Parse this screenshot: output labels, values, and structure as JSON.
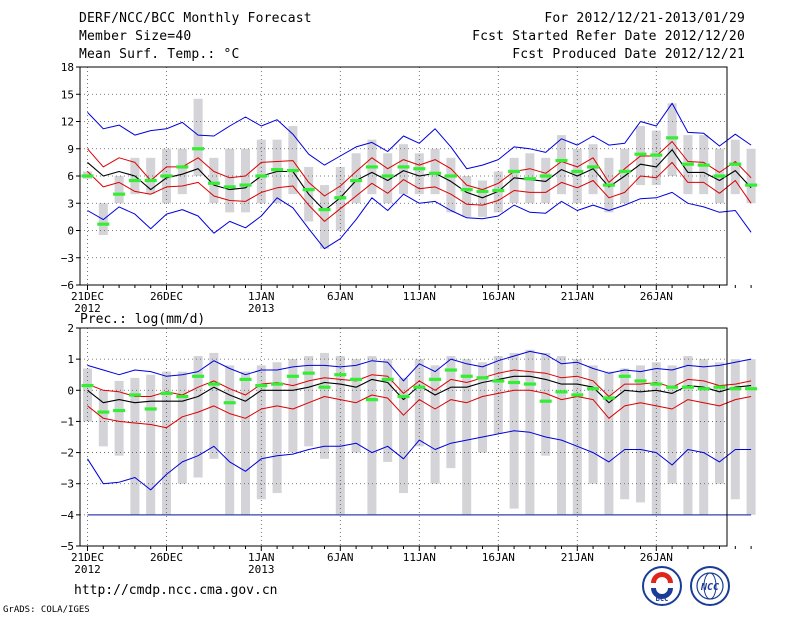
{
  "header": {
    "title": "DERF/NCC/BCC Monthly Forecast",
    "member_size": "Member Size=40",
    "variable": "Mean Surf. Temp.: °C",
    "forecast_period": "For 2012/12/21-2013/01/29",
    "fcst_started": "Fcst Started Refer Date 2012/12/20",
    "fcst_produced": "Fcst Produced Date 2012/12/21"
  },
  "footer": {
    "url": "http://cmdp.ncc.cma.gov.cn",
    "credit": "GrADS: COLA/IGES",
    "logo_left_text": "BCC",
    "logo_right_text": "NCC"
  },
  "colors": {
    "box": "#d3d3d8",
    "extreme": "#0000dd",
    "quartile": "#dd0000",
    "mean": "#000000",
    "observed": "#33ee33",
    "grid": "#555555"
  },
  "chart_data": [
    {
      "type": "line",
      "title": "Mean Surf. Temp.: °C",
      "x_start": "2012-12-21",
      "x_tick_labels": [
        "21DEC",
        "26DEC",
        "1JAN",
        "6JAN",
        "11JAN",
        "16JAN",
        "21JAN",
        "26JAN"
      ],
      "x_year_labels": [
        "2012",
        "2013"
      ],
      "y_tick_labels": [
        "18",
        "15",
        "12",
        "9",
        "6",
        "3",
        "0",
        "−3",
        "−6"
      ],
      "ylim": [
        -6,
        18
      ],
      "y_ticks": [
        -6,
        -3,
        0,
        3,
        6,
        9,
        12,
        15,
        18
      ],
      "grid": true,
      "series": [
        {
          "name": "max",
          "values": [
            13,
            11.2,
            11.6,
            10.5,
            11,
            11.2,
            11.9,
            10.5,
            10.4,
            11.5,
            12.5,
            11.5,
            12.2,
            10.6,
            8.4,
            7.2,
            8.2,
            9.2,
            9.7,
            8.7,
            10.4,
            9.6,
            11.2,
            9.2,
            6.8,
            7.2,
            7.8,
            9.2,
            9.0,
            8.6,
            10.1,
            9.4,
            10.4,
            9.4,
            9.6,
            12.0,
            11.5,
            14.0,
            10.8,
            10.7,
            9.3,
            10.6,
            9.4
          ]
        },
        {
          "name": "q3",
          "values": [
            9.0,
            7.0,
            8.0,
            7.5,
            5.5,
            7.0,
            7.0,
            8.0,
            6.5,
            5.8,
            6.0,
            7.5,
            7.6,
            7.7,
            5.3,
            3.8,
            4.9,
            6.5,
            8.0,
            6.8,
            7.8,
            7.2,
            7.8,
            6.8,
            5.0,
            4.5,
            5.2,
            6.5,
            6.8,
            6.3,
            7.6,
            7.0,
            8.0,
            5.3,
            6.8,
            8.2,
            8.2,
            9.8,
            7.6,
            7.5,
            6.4,
            7.6,
            5.8
          ]
        },
        {
          "name": "mean",
          "values": [
            7.5,
            6.0,
            6.5,
            6.0,
            4.5,
            5.8,
            6.2,
            6.8,
            5.0,
            4.5,
            4.7,
            6.0,
            6.5,
            6.5,
            4.0,
            2.2,
            3.6,
            5.5,
            6.4,
            5.5,
            6.6,
            6.0,
            6.3,
            5.4,
            4.2,
            3.6,
            4.3,
            5.8,
            5.6,
            5.4,
            6.7,
            6.0,
            6.8,
            4.8,
            6.0,
            7.3,
            7.0,
            8.9,
            6.4,
            6.4,
            5.5,
            6.6,
            4.7
          ]
        },
        {
          "name": "q1",
          "values": [
            6.5,
            4.8,
            5.3,
            4.3,
            4.0,
            4.8,
            4.9,
            5.3,
            3.8,
            3.3,
            3.2,
            4.2,
            4.7,
            4.9,
            2.8,
            1.0,
            2.4,
            3.8,
            5.2,
            4.1,
            5.6,
            4.6,
            4.8,
            4.0,
            2.9,
            2.8,
            3.3,
            4.4,
            4.2,
            4.2,
            5.3,
            4.7,
            5.5,
            3.6,
            4.2,
            6.0,
            5.8,
            7.5,
            5.3,
            5.3,
            4.1,
            5.5,
            3.0
          ]
        },
        {
          "name": "min",
          "values": [
            2.2,
            1.2,
            2.6,
            1.8,
            0.2,
            1.8,
            2.3,
            1.6,
            -0.3,
            1.0,
            0.3,
            1.6,
            3.6,
            2.5,
            0.2,
            -2.0,
            -0.9,
            1.2,
            3.6,
            2.2,
            4.0,
            3.0,
            3.2,
            2.2,
            1.4,
            1.3,
            1.6,
            2.8,
            2.0,
            1.9,
            3.2,
            2.2,
            2.8,
            2.2,
            2.8,
            3.5,
            3.6,
            4.2,
            3.0,
            2.6,
            2.0,
            2.2,
            -0.2
          ]
        }
      ],
      "box_low": [
        5.7,
        -0.5,
        3.0,
        4.0,
        4.0,
        3.0,
        4.0,
        6.0,
        3.0,
        2.0,
        2.0,
        3.0,
        3.0,
        4.0,
        1.0,
        -2.0,
        0.0,
        3.0,
        4.0,
        3.0,
        4.0,
        4.0,
        4.0,
        2.0,
        1.5,
        1.5,
        2.0,
        3.0,
        3.0,
        3.0,
        4.0,
        3.0,
        4.0,
        2.0,
        3.0,
        5.0,
        5.0,
        6.0,
        4.0,
        4.0,
        3.0,
        4.0,
        3.0
      ],
      "box_high": [
        6.5,
        3.0,
        6.0,
        8.0,
        8.0,
        9.0,
        9.0,
        14.5,
        8.0,
        9.0,
        9.0,
        10.0,
        10.0,
        11.5,
        7.0,
        5.0,
        7.0,
        8.5,
        10.0,
        8.5,
        9.5,
        8.5,
        9.0,
        8.0,
        6.0,
        5.5,
        6.5,
        8.0,
        8.5,
        8.0,
        10.5,
        9.0,
        9.5,
        8.0,
        9.0,
        11.5,
        11.0,
        14.0,
        10.5,
        10.5,
        9.0,
        10.0,
        9.0
      ],
      "observed": [
        6.0,
        0.7,
        4.0,
        5.5,
        5.5,
        6.0,
        7.0,
        9.0,
        5.2,
        4.8,
        5.0,
        6.0,
        6.7,
        6.6,
        4.5,
        2.3,
        3.6,
        5.5,
        7.0,
        6.0,
        7.0,
        6.8,
        6.3,
        6.0,
        4.5,
        4.3,
        4.4,
        6.5,
        5.7,
        6.0,
        7.7,
        6.5,
        7.0,
        5.0,
        6.5,
        8.4,
        8.3,
        10.2,
        7.3,
        7.2,
        6.0,
        7.3,
        5.0
      ]
    },
    {
      "type": "line",
      "title": "Prec.: log(mm/d)",
      "x_start": "2012-12-21",
      "x_tick_labels": [
        "21DEC",
        "26DEC",
        "1JAN",
        "6JAN",
        "11JAN",
        "16JAN",
        "21JAN",
        "26JAN"
      ],
      "x_year_labels": [
        "2012",
        "2013"
      ],
      "y_tick_labels": [
        "2",
        "1",
        "0",
        "−1",
        "−2",
        "−3",
        "−4",
        "−5"
      ],
      "ylim": [
        -5,
        2
      ],
      "y_ticks": [
        -5,
        -4,
        -3,
        -2,
        -1,
        0,
        1,
        2
      ],
      "grid": true,
      "series": [
        {
          "name": "max",
          "values": [
            0.8,
            0.65,
            0.5,
            0.65,
            0.6,
            0.45,
            0.5,
            0.6,
            0.95,
            0.7,
            0.5,
            0.65,
            0.65,
            0.75,
            0.8,
            0.8,
            0.75,
            0.8,
            0.95,
            0.9,
            0.3,
            0.85,
            0.6,
            1.0,
            0.85,
            0.75,
            0.95,
            1.1,
            1.25,
            1.15,
            0.85,
            0.9,
            0.7,
            0.55,
            0.65,
            0.6,
            0.7,
            0.65,
            0.8,
            0.75,
            0.8,
            0.9,
            1.0
          ]
        },
        {
          "name": "q3",
          "values": [
            0.2,
            0.0,
            -0.05,
            -0.2,
            -0.2,
            -0.05,
            -0.15,
            0.1,
            0.3,
            0.05,
            -0.15,
            0.2,
            0.25,
            0.15,
            0.3,
            0.4,
            0.35,
            0.3,
            0.5,
            0.45,
            -0.1,
            0.3,
            0.0,
            0.35,
            0.25,
            0.4,
            0.55,
            0.65,
            0.6,
            0.55,
            0.4,
            0.45,
            0.3,
            -0.2,
            0.2,
            0.2,
            0.25,
            0.1,
            0.35,
            0.3,
            0.15,
            0.2,
            0.3
          ]
        },
        {
          "name": "mean",
          "values": [
            0.0,
            -0.4,
            -0.3,
            -0.4,
            -0.35,
            -0.35,
            -0.35,
            -0.2,
            0.1,
            -0.15,
            -0.35,
            0.0,
            0.0,
            0.0,
            0.1,
            0.25,
            0.2,
            0.1,
            0.35,
            0.25,
            -0.3,
            0.15,
            -0.15,
            0.1,
            0.1,
            0.25,
            0.35,
            0.45,
            0.45,
            0.35,
            0.2,
            0.2,
            0.1,
            -0.4,
            0.0,
            -0.05,
            0.0,
            -0.1,
            0.15,
            0.1,
            -0.05,
            0.1,
            0.15
          ]
        },
        {
          "name": "q1",
          "values": [
            -0.5,
            -0.9,
            -1.0,
            -1.05,
            -1.1,
            -1.2,
            -0.85,
            -0.7,
            -0.5,
            -0.75,
            -0.9,
            -0.6,
            -0.5,
            -0.6,
            -0.4,
            -0.2,
            -0.3,
            -0.4,
            -0.15,
            -0.25,
            -0.8,
            -0.3,
            -0.6,
            -0.3,
            -0.4,
            -0.2,
            -0.1,
            0.0,
            0.0,
            -0.1,
            -0.3,
            -0.2,
            -0.3,
            -0.9,
            -0.5,
            -0.4,
            -0.5,
            -0.6,
            -0.3,
            -0.4,
            -0.5,
            -0.3,
            -0.2
          ]
        },
        {
          "name": "min",
          "values": [
            -2.2,
            -3.0,
            -2.95,
            -2.8,
            -3.2,
            -2.7,
            -2.3,
            -2.1,
            -1.8,
            -2.3,
            -2.6,
            -2.2,
            -2.1,
            -2.05,
            -1.9,
            -1.8,
            -1.8,
            -1.7,
            -2.0,
            -1.8,
            -2.2,
            -1.6,
            -1.9,
            -1.7,
            -1.6,
            -1.5,
            -1.4,
            -1.3,
            -1.35,
            -1.5,
            -1.6,
            -1.8,
            -2.0,
            -2.3,
            -1.9,
            -1.9,
            -2.0,
            -2.4,
            -1.9,
            -2.0,
            -2.3,
            -1.9,
            -1.9
          ]
        },
        {
          "name": "floor",
          "values": [
            -4,
            -4,
            -4,
            -4,
            -4,
            -4,
            -4,
            -4,
            -4,
            -4,
            -4,
            -4,
            -4,
            -4,
            -4,
            -4,
            -4,
            -4,
            -4,
            -4,
            -4,
            -4,
            -4,
            -4,
            -4,
            -4,
            -4,
            -4,
            -4,
            -4,
            -4,
            -4,
            -4,
            -4,
            -4,
            -4,
            -4,
            -4,
            -4,
            -4,
            -4,
            -4,
            -4
          ]
        }
      ],
      "box_low": [
        -1.0,
        -1.8,
        -2.1,
        -4.0,
        -4.0,
        -4.0,
        -3.0,
        -2.8,
        -2.2,
        -4.0,
        -4.0,
        -3.5,
        -3.3,
        -2.0,
        -1.8,
        -2.2,
        -4.0,
        -2.0,
        -4.0,
        -2.3,
        -3.3,
        -1.8,
        -3.0,
        -2.5,
        -4.0,
        -2.0,
        -1.4,
        -3.8,
        -4.0,
        -2.1,
        -4.0,
        -4.0,
        -3.0,
        -4.0,
        -3.5,
        -3.6,
        -4.0,
        -3.0,
        -4.0,
        -4.0,
        -3.0,
        -3.5,
        -4.0
      ],
      "box_high": [
        0.7,
        0.0,
        0.3,
        0.4,
        0.5,
        0.6,
        0.6,
        1.1,
        1.2,
        0.8,
        0.6,
        0.8,
        0.9,
        1.0,
        1.1,
        1.2,
        1.1,
        1.0,
        1.1,
        1.0,
        0.4,
        1.0,
        0.8,
        1.1,
        1.0,
        0.9,
        1.1,
        1.2,
        1.3,
        1.2,
        1.1,
        1.0,
        0.8,
        0.6,
        0.7,
        0.8,
        0.9,
        0.8,
        1.1,
        1.0,
        0.9,
        1.0,
        1.0
      ],
      "observed": [
        0.15,
        -0.7,
        -0.65,
        -0.15,
        -0.6,
        -0.1,
        -0.2,
        0.45,
        0.2,
        -0.4,
        0.35,
        0.15,
        0.2,
        0.45,
        0.55,
        0.1,
        0.5,
        0.35,
        -0.3,
        0.35,
        -0.2,
        0.1,
        0.35,
        0.65,
        0.45,
        0.4,
        0.3,
        0.25,
        0.2,
        -0.35,
        -0.05,
        -0.15,
        0.05,
        -0.25,
        0.45,
        0.3,
        0.2,
        0.1,
        0.1,
        0.05,
        0.1,
        0.05,
        0.05
      ]
    }
  ]
}
